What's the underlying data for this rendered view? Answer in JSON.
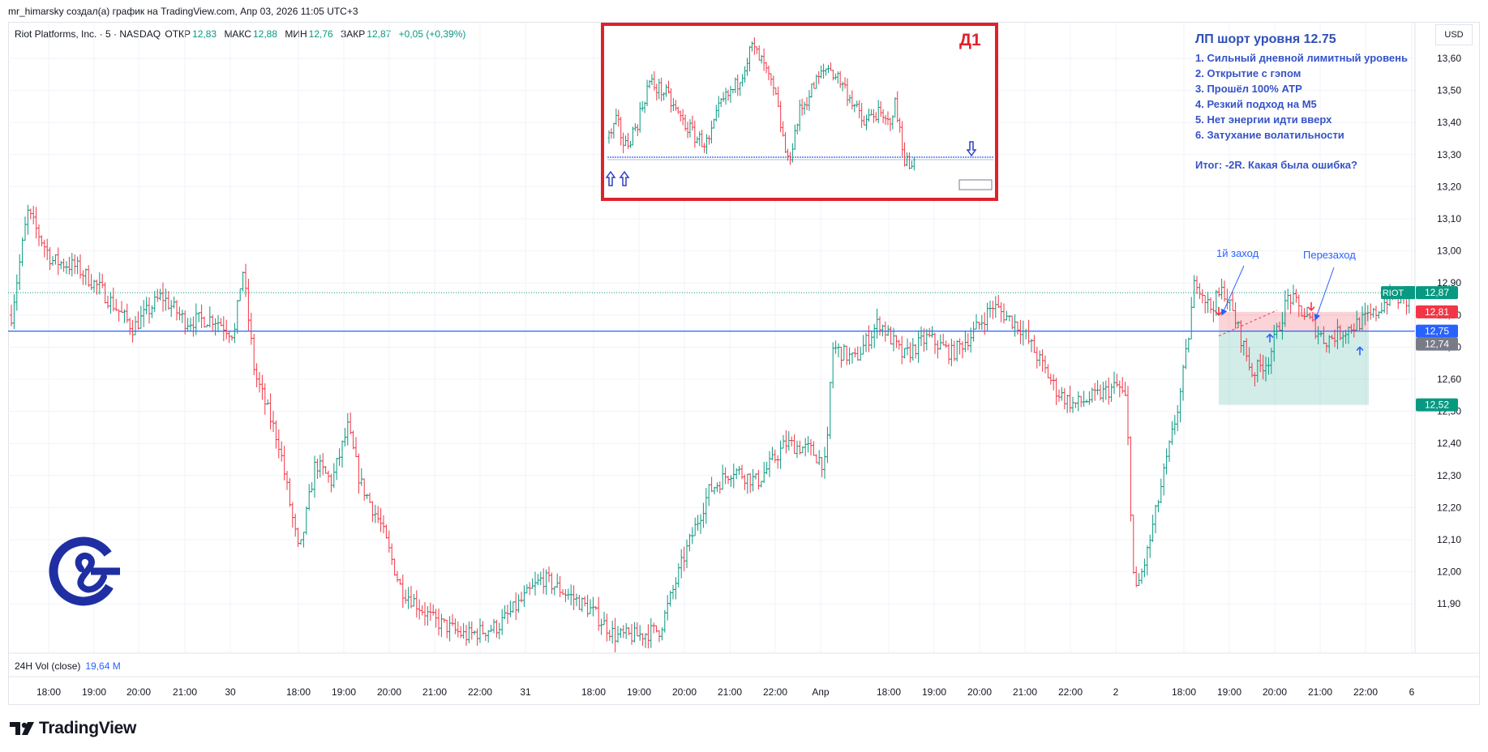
{
  "header": {
    "credit": "mr_himarsky создал(а) график на TradingView.com, Апр 03, 2026 11:05 UTC+3"
  },
  "legend": {
    "symbol": "Riot Platforms, Inc. · 5 · NASDAQ",
    "open_label": "ОТКР",
    "open": "12,83",
    "high_label": "МАКС",
    "high": "12,88",
    "low_label": "МИН",
    "low": "12,76",
    "close_label": "ЗАКР",
    "close": "12,87",
    "change": "+0,05 (+0,39%)"
  },
  "currency": "USD",
  "volume": {
    "label": "24H Vol (close)",
    "value": "19,64 M"
  },
  "brand": {
    "name": "TradingView"
  },
  "notes": {
    "title": "ЛП шорт уровня 12.75",
    "items": [
      "1. Сильный дневной лимитный уровень",
      "2. Открытие с гэпом",
      "3. Прошёл 100% АТР",
      "4. Резкий подход на М5",
      "5. Нет энергии идти вверх",
      "6. Затухание волатильности"
    ],
    "summary": "Итог: -2R. Какая была ошибка?"
  },
  "annotations": {
    "first_entry": "1й заход",
    "reentry": "Перезаход",
    "inset_label": "Д1"
  },
  "colors": {
    "up": "#089981",
    "down": "#f23645",
    "level": "#2962ff",
    "inset_border": "#e0212c",
    "notes_text": "#3553c9"
  },
  "chart_data": {
    "type": "ohlc",
    "y_axis_ticks": [
      "13,60",
      "13,50",
      "13,40",
      "13,30",
      "13,20",
      "13,10",
      "13,00",
      "12,90",
      "12,80",
      "12,70",
      "12,60",
      "12,50",
      "12,40",
      "12,30",
      "12,20",
      "12,10",
      "12,00",
      "11,90"
    ],
    "ylim": [
      11.82,
      13.75
    ],
    "x_axis_ticks": [
      "18:00",
      "19:00",
      "20:00",
      "21:00",
      "30",
      "18:00",
      "19:00",
      "20:00",
      "21:00",
      "22:00",
      "31",
      "18:00",
      "19:00",
      "20:00",
      "21:00",
      "22:00",
      "Апр",
      "18:00",
      "19:00",
      "20:00",
      "21:00",
      "22:00",
      "2",
      "18:00",
      "19:00",
      "20:00",
      "21:00",
      "22:00",
      "6"
    ],
    "levels": [
      {
        "name": "level",
        "value": 12.75
      },
      {
        "name": "last",
        "value": 12.87
      }
    ],
    "price_labels": [
      {
        "label": "RIOT",
        "value": "12,87",
        "color": "#089981"
      },
      {
        "label": "",
        "value": "12,81",
        "color": "#f23645"
      },
      {
        "label": "",
        "value": "12,75",
        "color": "#2962ff"
      },
      {
        "label": "",
        "value": "12,74",
        "color": "#787b86"
      },
      {
        "label": "",
        "value": "12,52",
        "color": "#089981"
      }
    ],
    "position_box": {
      "entry": 12.75,
      "stop": 12.81,
      "target": 12.52
    },
    "path": [
      [
        0,
        12.8
      ],
      [
        20,
        13.12
      ],
      [
        50,
        12.97
      ],
      [
        80,
        12.95
      ],
      [
        110,
        12.88
      ],
      [
        150,
        12.76
      ],
      [
        185,
        12.86
      ],
      [
        215,
        12.78
      ],
      [
        250,
        12.79
      ],
      [
        275,
        12.74
      ],
      [
        285,
        12.95
      ],
      [
        300,
        12.62
      ],
      [
        330,
        12.4
      ],
      [
        355,
        12.05
      ],
      [
        375,
        12.34
      ],
      [
        395,
        12.28
      ],
      [
        415,
        12.45
      ],
      [
        430,
        12.28
      ],
      [
        455,
        12.15
      ],
      [
        480,
        11.95
      ],
      [
        520,
        11.85
      ],
      [
        560,
        11.8
      ],
      [
        600,
        11.83
      ],
      [
        655,
        11.98
      ],
      [
        680,
        11.94
      ],
      [
        715,
        11.88
      ],
      [
        745,
        11.8
      ],
      [
        770,
        11.8
      ],
      [
        800,
        11.82
      ],
      [
        830,
        12.05
      ],
      [
        860,
        12.25
      ],
      [
        890,
        12.32
      ],
      [
        920,
        12.28
      ],
      [
        955,
        12.4
      ],
      [
        985,
        12.38
      ],
      [
        1005,
        12.33
      ],
      [
        1012,
        12.7
      ],
      [
        1040,
        12.66
      ],
      [
        1070,
        12.78
      ],
      [
        1100,
        12.67
      ],
      [
        1130,
        12.73
      ],
      [
        1160,
        12.68
      ],
      [
        1185,
        12.74
      ],
      [
        1210,
        12.83
      ],
      [
        1245,
        12.76
      ],
      [
        1270,
        12.65
      ],
      [
        1290,
        12.56
      ],
      [
        1310,
        12.52
      ],
      [
        1340,
        12.55
      ],
      [
        1365,
        12.58
      ],
      [
        1375,
        12.53
      ],
      [
        1385,
        11.92
      ],
      [
        1400,
        12.05
      ],
      [
        1425,
        12.35
      ],
      [
        1440,
        12.53
      ],
      [
        1450,
        12.7
      ],
      [
        1460,
        12.92
      ],
      [
        1478,
        12.82
      ],
      [
        1495,
        12.88
      ],
      [
        1510,
        12.78
      ],
      [
        1530,
        12.62
      ],
      [
        1550,
        12.66
      ],
      [
        1575,
        12.86
      ],
      [
        1595,
        12.8
      ],
      [
        1620,
        12.72
      ],
      [
        1650,
        12.76
      ],
      [
        1680,
        12.8
      ],
      [
        1700,
        12.86
      ],
      [
        1720,
        12.84
      ],
      [
        1740,
        12.85
      ]
    ],
    "inset": {
      "title": "Д1",
      "level": 13.32,
      "path": [
        [
          0,
          13.38
        ],
        [
          10,
          13.43
        ],
        [
          20,
          13.35
        ],
        [
          35,
          13.42
        ],
        [
          50,
          13.55
        ],
        [
          70,
          13.52
        ],
        [
          90,
          13.44
        ],
        [
          110,
          13.38
        ],
        [
          125,
          13.36
        ],
        [
          140,
          13.48
        ],
        [
          160,
          13.54
        ],
        [
          180,
          13.66
        ],
        [
          195,
          13.6
        ],
        [
          210,
          13.5
        ],
        [
          225,
          13.3
        ],
        [
          240,
          13.46
        ],
        [
          260,
          13.55
        ],
        [
          275,
          13.6
        ],
        [
          290,
          13.56
        ],
        [
          305,
          13.5
        ],
        [
          320,
          13.42
        ],
        [
          335,
          13.46
        ],
        [
          350,
          13.42
        ],
        [
          360,
          13.48
        ],
        [
          372,
          13.32
        ],
        [
          380,
          13.28
        ],
        [
          385,
          13.34
        ]
      ]
    }
  }
}
